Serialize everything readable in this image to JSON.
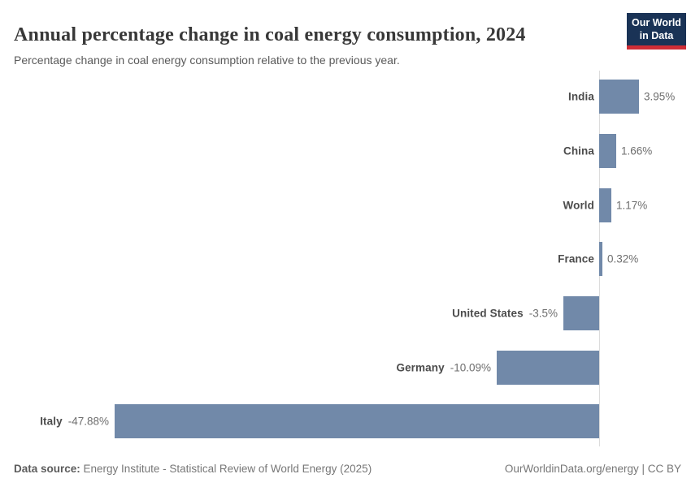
{
  "header": {
    "title": "Annual percentage change in coal energy consumption, 2024",
    "subtitle": "Percentage change in coal energy consumption relative to the previous year.",
    "logo": {
      "line1": "Our World",
      "line2": "in Data"
    }
  },
  "chart_data": {
    "type": "bar",
    "orientation": "horizontal",
    "categories": [
      "India",
      "China",
      "World",
      "France",
      "United States",
      "Germany",
      "Italy"
    ],
    "values": [
      3.95,
      1.66,
      1.17,
      0.32,
      -3.5,
      -10.09,
      -47.88
    ],
    "value_labels": [
      "3.95%",
      "1.66%",
      "1.17%",
      "0.32%",
      "-3.5%",
      "-10.09%",
      "-47.88%"
    ],
    "title": "Annual percentage change in coal energy consumption, 2024",
    "xlabel": "",
    "ylabel": "",
    "xlim": [
      -47.88,
      3.95
    ],
    "grid": false,
    "legend": false,
    "bar_color": "#7189a9",
    "axis_color": "#dcdcdc",
    "label_color": "#4c4c4c",
    "value_color": "#6e6e6e"
  },
  "footer": {
    "datasource_label": "Data source:",
    "datasource_text": " Energy Institute - Statistical Review of World Energy (2025)",
    "credit": "OurWorldinData.org/energy | CC BY"
  },
  "brand": {
    "navy": "#1a3356",
    "red": "#cf2d36"
  }
}
